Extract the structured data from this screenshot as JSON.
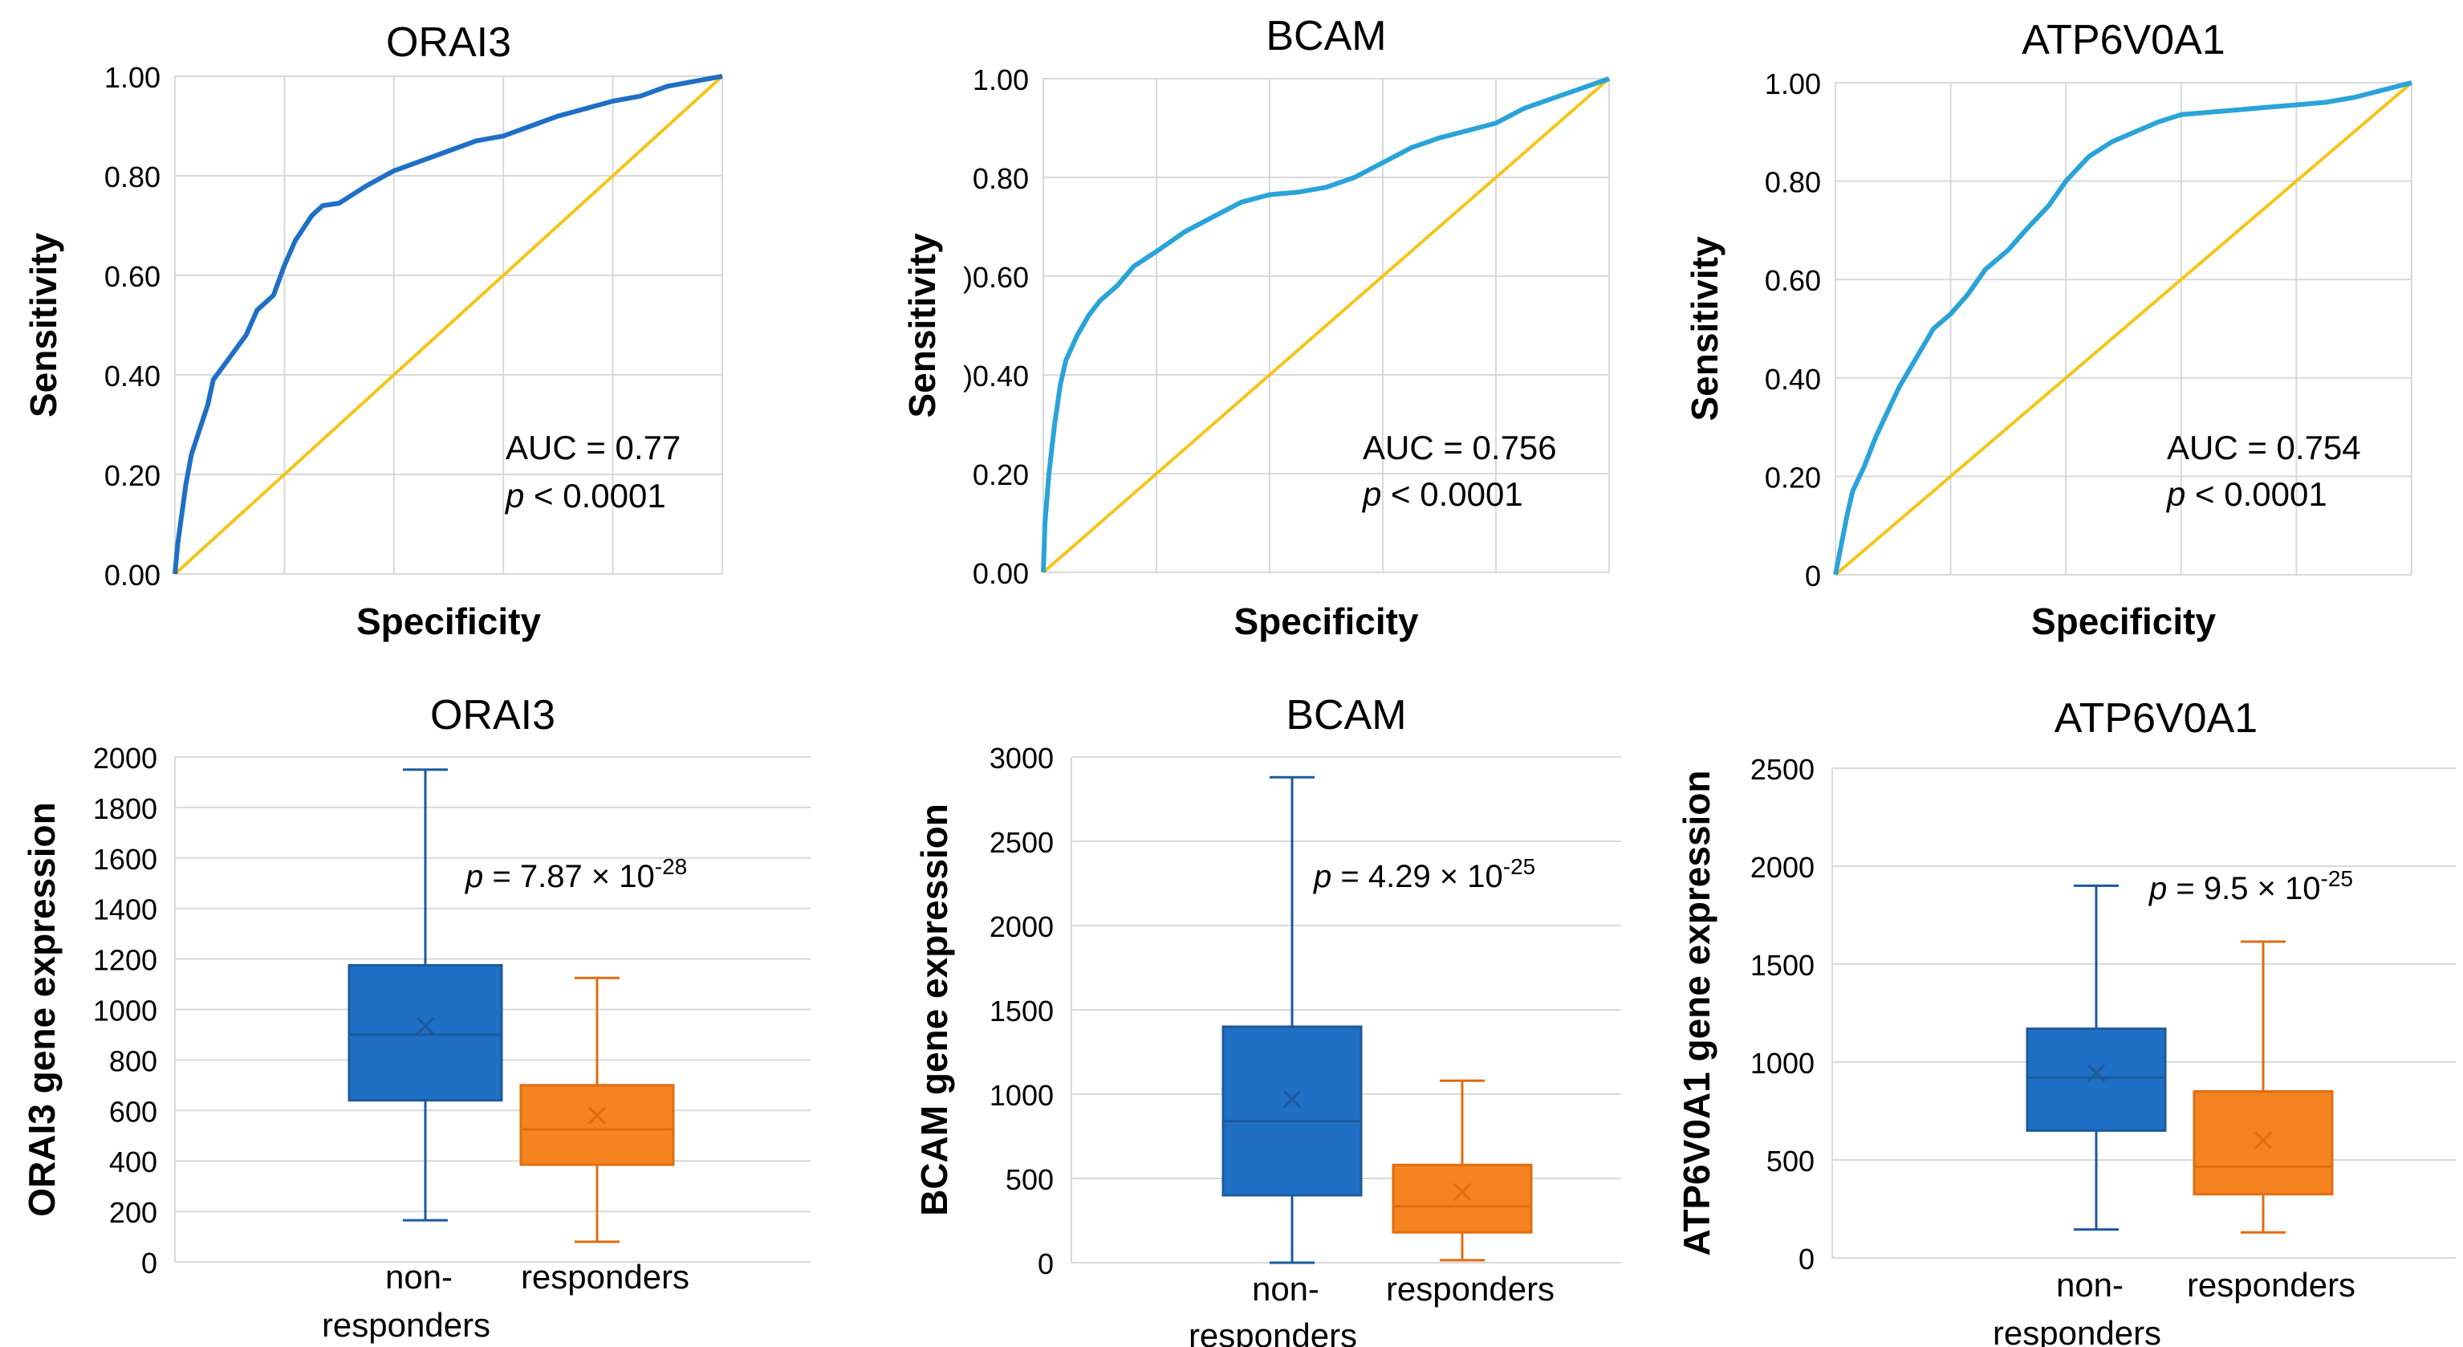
{
  "colors": {
    "blue_dark": "#1f6fc5",
    "blue_light": "#2aa3d9",
    "orange": "#f5831f",
    "diagonal": "#f5c518",
    "grid": "#d9d9d9",
    "text": "#000000",
    "box_stroke_blue": "#1c5a9c",
    "box_stroke_orange": "#e06d10"
  },
  "chart_data": [
    {
      "type": "line",
      "title": "ORAI3",
      "xlabel": "Specificity",
      "ylabel": "Sensitivity",
      "ylim": [
        0,
        1
      ],
      "yticks": [
        "0.00",
        "0.20",
        "0.40",
        "0.60",
        "0.80",
        "1.00"
      ],
      "grid": true,
      "annotation": {
        "auc": "AUC = 0.77",
        "p_italic": "p",
        "p_rest": " < 0.0001"
      },
      "series": [
        {
          "name": "ROC",
          "color": "#1f6fc5",
          "points": [
            [
              0,
              0
            ],
            [
              0.005,
              0.06
            ],
            [
              0.01,
              0.1
            ],
            [
              0.02,
              0.18
            ],
            [
              0.03,
              0.24
            ],
            [
              0.045,
              0.29
            ],
            [
              0.06,
              0.34
            ],
            [
              0.07,
              0.39
            ],
            [
              0.09,
              0.42
            ],
            [
              0.11,
              0.45
            ],
            [
              0.13,
              0.48
            ],
            [
              0.15,
              0.53
            ],
            [
              0.18,
              0.56
            ],
            [
              0.2,
              0.62
            ],
            [
              0.22,
              0.67
            ],
            [
              0.25,
              0.72
            ],
            [
              0.27,
              0.74
            ],
            [
              0.3,
              0.745
            ],
            [
              0.35,
              0.78
            ],
            [
              0.4,
              0.81
            ],
            [
              0.45,
              0.83
            ],
            [
              0.5,
              0.85
            ],
            [
              0.55,
              0.87
            ],
            [
              0.6,
              0.88
            ],
            [
              0.65,
              0.9
            ],
            [
              0.7,
              0.92
            ],
            [
              0.75,
              0.935
            ],
            [
              0.8,
              0.95
            ],
            [
              0.85,
              0.96
            ],
            [
              0.9,
              0.98
            ],
            [
              0.95,
              0.99
            ],
            [
              1,
              1
            ]
          ]
        },
        {
          "name": "Reference",
          "color": "#f5c518",
          "points": [
            [
              0,
              0
            ],
            [
              1,
              1
            ]
          ]
        }
      ]
    },
    {
      "type": "line",
      "title": "BCAM",
      "xlabel": "Specificity",
      "ylabel": "Sensitivity",
      "ylim": [
        0,
        1
      ],
      "yticks": [
        "0.00",
        "0.20",
        ")0.40",
        ")0.60",
        "0.80",
        "1.00"
      ],
      "grid": true,
      "annotation": {
        "auc": "AUC = 0.756",
        "p_italic": "p",
        "p_rest": " < 0.0001"
      },
      "series": [
        {
          "name": "ROC",
          "color": "#2aa3d9",
          "points": [
            [
              0,
              0
            ],
            [
              0.003,
              0.1
            ],
            [
              0.01,
              0.2
            ],
            [
              0.02,
              0.3
            ],
            [
              0.03,
              0.38
            ],
            [
              0.04,
              0.43
            ],
            [
              0.06,
              0.48
            ],
            [
              0.08,
              0.52
            ],
            [
              0.1,
              0.55
            ],
            [
              0.13,
              0.58
            ],
            [
              0.16,
              0.62
            ],
            [
              0.2,
              0.65
            ],
            [
              0.25,
              0.69
            ],
            [
              0.3,
              0.72
            ],
            [
              0.35,
              0.75
            ],
            [
              0.4,
              0.765
            ],
            [
              0.45,
              0.77
            ],
            [
              0.5,
              0.78
            ],
            [
              0.55,
              0.8
            ],
            [
              0.6,
              0.83
            ],
            [
              0.65,
              0.86
            ],
            [
              0.7,
              0.88
            ],
            [
              0.75,
              0.895
            ],
            [
              0.8,
              0.91
            ],
            [
              0.85,
              0.94
            ],
            [
              0.9,
              0.96
            ],
            [
              0.95,
              0.98
            ],
            [
              1,
              1
            ]
          ]
        },
        {
          "name": "Reference",
          "color": "#f5c518",
          "points": [
            [
              0,
              0
            ],
            [
              1,
              1
            ]
          ]
        }
      ]
    },
    {
      "type": "line",
      "title": "ATP6V0A1",
      "xlabel": "Specificity",
      "ylabel": "Sensitivity",
      "ylim": [
        0,
        1
      ],
      "yticks": [
        "0",
        "0.20",
        "0.40",
        "0.60",
        "0.80",
        "1.00"
      ],
      "grid": true,
      "annotation": {
        "auc": "AUC = 0.754",
        "p_italic": "p",
        "p_rest": " < 0.0001"
      },
      "series": [
        {
          "name": "ROC",
          "color": "#2aa3d9",
          "points": [
            [
              0,
              0
            ],
            [
              0.01,
              0.06
            ],
            [
              0.02,
              0.12
            ],
            [
              0.03,
              0.17
            ],
            [
              0.05,
              0.22
            ],
            [
              0.07,
              0.28
            ],
            [
              0.09,
              0.33
            ],
            [
              0.11,
              0.38
            ],
            [
              0.13,
              0.42
            ],
            [
              0.15,
              0.46
            ],
            [
              0.17,
              0.5
            ],
            [
              0.2,
              0.53
            ],
            [
              0.23,
              0.57
            ],
            [
              0.26,
              0.62
            ],
            [
              0.3,
              0.66
            ],
            [
              0.33,
              0.7
            ],
            [
              0.37,
              0.75
            ],
            [
              0.4,
              0.8
            ],
            [
              0.44,
              0.85
            ],
            [
              0.48,
              0.88
            ],
            [
              0.52,
              0.9
            ],
            [
              0.56,
              0.92
            ],
            [
              0.6,
              0.935
            ],
            [
              0.65,
              0.94
            ],
            [
              0.7,
              0.945
            ],
            [
              0.75,
              0.95
            ],
            [
              0.8,
              0.955
            ],
            [
              0.85,
              0.96
            ],
            [
              0.9,
              0.97
            ],
            [
              0.95,
              0.985
            ],
            [
              1,
              1
            ]
          ]
        },
        {
          "name": "Reference",
          "color": "#f5c518",
          "points": [
            [
              0,
              0
            ],
            [
              1,
              1
            ]
          ]
        }
      ]
    },
    {
      "type": "box",
      "title": "ORAI3",
      "ylabel": "ORAI3 gene expression",
      "ylim": [
        0,
        2000
      ],
      "yticks": [
        "0",
        "200",
        "400",
        "600",
        "800",
        "1000",
        "1200",
        "1400",
        "1600",
        "1800",
        "2000"
      ],
      "grid": true,
      "categories": [
        "non-\nresponders",
        "responders"
      ],
      "annotation": {
        "p_italic": "p",
        "p_eq": " = 7.87 × 10",
        "p_exp": "-28"
      },
      "boxes": [
        {
          "name": "non-responders",
          "color": "#1f6fc5",
          "min": 165,
          "q1": 640,
          "median": 900,
          "q3": 1175,
          "max": 1950,
          "mean": 935
        },
        {
          "name": "responders",
          "color": "#f5831f",
          "min": 80,
          "q1": 385,
          "median": 525,
          "q3": 700,
          "max": 1125,
          "mean": 580
        }
      ]
    },
    {
      "type": "box",
      "title": "BCAM",
      "ylabel": "BCAM gene expression",
      "ylim": [
        0,
        3000
      ],
      "yticks": [
        "0",
        "500",
        "1000",
        "1500",
        "2000",
        "2500",
        "3000"
      ],
      "grid": true,
      "categories": [
        "non-\nresponders",
        "responders"
      ],
      "annotation": {
        "p_italic": "p",
        "p_eq": " = 4.29 × 10",
        "p_exp": "-25"
      },
      "boxes": [
        {
          "name": "non-responders",
          "color": "#1f6fc5",
          "min": 0,
          "q1": 400,
          "median": 840,
          "q3": 1400,
          "max": 2880,
          "mean": 970
        },
        {
          "name": "responders",
          "color": "#f5831f",
          "min": 15,
          "q1": 180,
          "median": 335,
          "q3": 580,
          "max": 1080,
          "mean": 420
        }
      ]
    },
    {
      "type": "box",
      "title": "ATP6V0A1",
      "ylabel": "ATP6V0A1 gene expression",
      "ylim": [
        0,
        2500
      ],
      "yticks": [
        "0",
        "500",
        "1000",
        "1500",
        "2000",
        "2500"
      ],
      "grid": true,
      "categories": [
        "non-\nresponders",
        "responders"
      ],
      "annotation": {
        "p_italic": "p",
        "p_eq": " = 9.5 × 10",
        "p_exp": "-25"
      },
      "boxes": [
        {
          "name": "non-responders",
          "color": "#1f6fc5",
          "min": 145,
          "q1": 650,
          "median": 920,
          "q3": 1170,
          "max": 1900,
          "mean": 945
        },
        {
          "name": "responders",
          "color": "#f5831f",
          "min": 130,
          "q1": 325,
          "median": 465,
          "q3": 850,
          "max": 1615,
          "mean": 600
        }
      ]
    }
  ]
}
